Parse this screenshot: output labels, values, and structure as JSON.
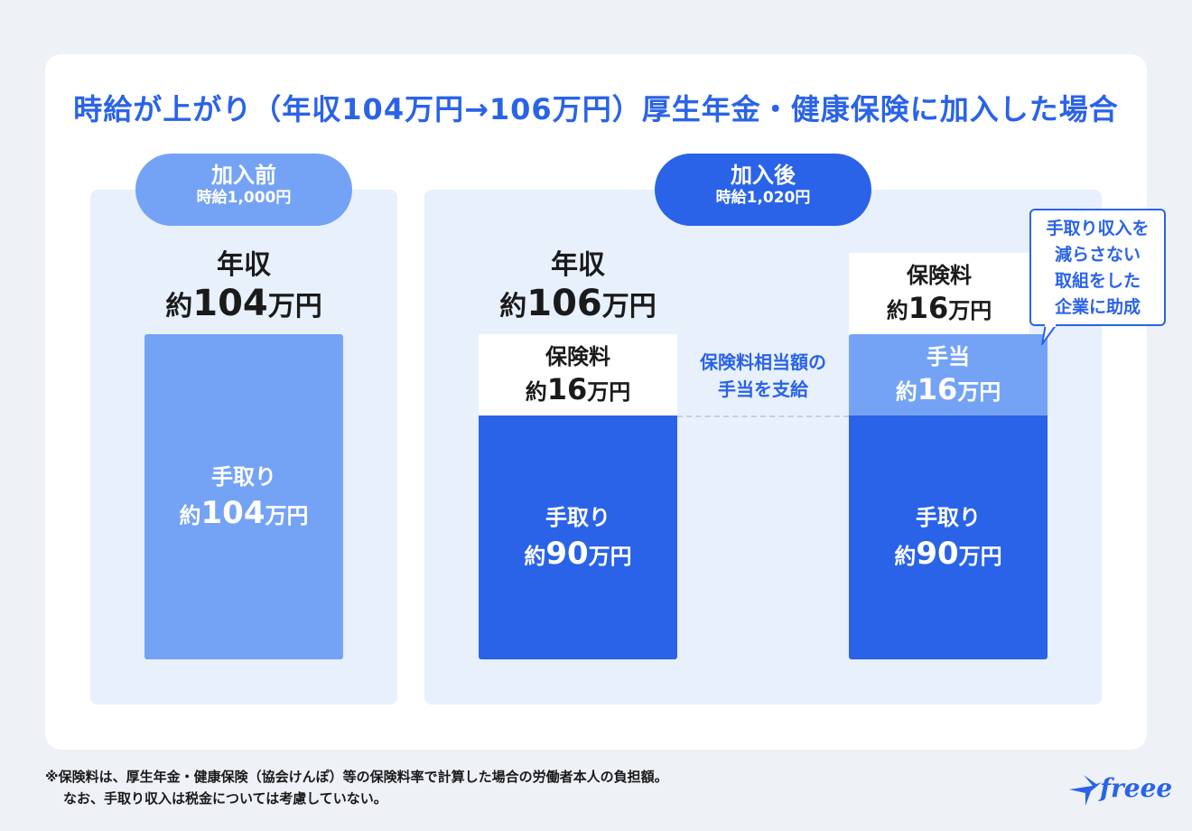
{
  "title": "時給が上がり（年収104万円→106万円）厚生年金・健康保険に加入した場合",
  "colors": {
    "primary": "#2a63e8",
    "light": "#74a3f5",
    "panel": "#e8f0fc"
  },
  "before": {
    "pill_main": "加入前",
    "pill_sub": "時給1,000円",
    "income_label": "年収",
    "income_prefix": "約",
    "income_value": "104",
    "income_unit": "万円",
    "bar": {
      "label": "手取り",
      "prefix": "約",
      "value": "104",
      "unit": "万円"
    }
  },
  "after": {
    "pill_main": "加入後",
    "pill_sub": "時給1,020円",
    "income_label": "年収",
    "income_prefix": "約",
    "income_value": "106",
    "income_unit": "万円",
    "left_column": {
      "insurance_label": "保険料",
      "insurance_prefix": "約",
      "insurance_value": "16",
      "insurance_unit": "万円",
      "takehome_label": "手取り",
      "takehome_prefix": "約",
      "takehome_value": "90",
      "takehome_unit": "万円"
    },
    "middle_note_line1": "保険料相当額の",
    "middle_note_line2": "手当を支給",
    "right_column": {
      "insurance_label": "保険料",
      "insurance_prefix": "約",
      "insurance_value": "16",
      "insurance_unit": "万円",
      "allowance_label": "手当",
      "allowance_prefix": "約",
      "allowance_value": "16",
      "allowance_unit": "万円",
      "takehome_label": "手取り",
      "takehome_prefix": "約",
      "takehome_value": "90",
      "takehome_unit": "万円"
    },
    "callout_lines": [
      "手取り収入を",
      "減らさない",
      "取組をした",
      "企業に助成"
    ]
  },
  "footnote": {
    "line1": "※保険料は、厚生年金・健康保険（協会けんぽ）等の保険料率で計算した場合の労働者本人の負担額。",
    "line2": "なお、手取り収入は税金については考慮していない。"
  },
  "logo": {
    "text": "freee"
  }
}
